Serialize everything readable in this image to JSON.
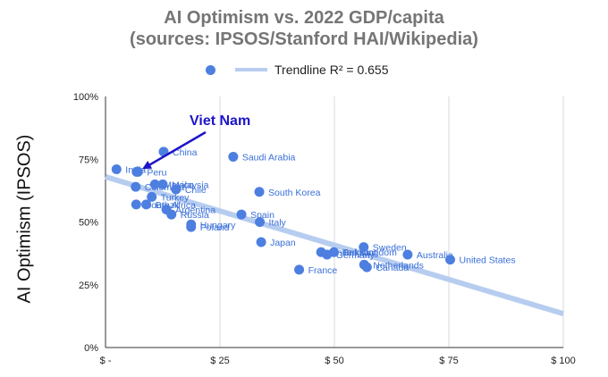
{
  "chart_data": {
    "type": "scatter",
    "title": "AI Optimism vs. 2022 GDP/capita",
    "subtitle": "(sources: IPSOS/Stanford HAI/Wikipedia)",
    "xlabel": "",
    "ylabel": "AI Optimism (IPSOS)",
    "xlim": [
      0,
      100
    ],
    "ylim": [
      0,
      100
    ],
    "x_ticks": [
      {
        "value": 0,
        "label": "$ -"
      },
      {
        "value": 25,
        "label": "$ 25"
      },
      {
        "value": 50,
        "label": "$ 50"
      },
      {
        "value": 75,
        "label": "$ 75"
      },
      {
        "value": 100,
        "label": "$ 100"
      }
    ],
    "y_ticks": [
      {
        "value": 0,
        "label": "0%"
      },
      {
        "value": 25,
        "label": "25%"
      },
      {
        "value": 50,
        "label": "50%"
      },
      {
        "value": 75,
        "label": "75%"
      },
      {
        "value": 100,
        "label": "100%"
      }
    ],
    "grid": "vertical",
    "legend_position": "top",
    "legend": {
      "trendline_label": "Trendline R² = 0.655"
    },
    "points_color": "#4d7fe0",
    "trendline_color": "#b7cdf0",
    "label_color": "#3a6fd8",
    "trendline": {
      "x0": 0,
      "y0": 68,
      "x1": 100,
      "y1": 13.5
    },
    "points": [
      {
        "label": "India",
        "x": 2.4,
        "y": 71
      },
      {
        "label": "Viet Nam",
        "x": 6.8,
        "y": 70
      },
      {
        "label": "Peru",
        "x": 7.1,
        "y": 70
      },
      {
        "label": "China",
        "x": 12.7,
        "y": 78
      },
      {
        "label": "Colombia",
        "x": 6.6,
        "y": 64
      },
      {
        "label": "Mexico",
        "x": 10.8,
        "y": 65
      },
      {
        "label": "Malaysia",
        "x": 12.5,
        "y": 65
      },
      {
        "label": "Chile",
        "x": 15.4,
        "y": 63
      },
      {
        "label": "Turkey",
        "x": 10.1,
        "y": 60
      },
      {
        "label": "South Africa",
        "x": 6.7,
        "y": 57
      },
      {
        "label": "Brazil",
        "x": 8.9,
        "y": 57
      },
      {
        "label": "Argentina",
        "x": 13.3,
        "y": 55
      },
      {
        "label": "Russia",
        "x": 14.4,
        "y": 53
      },
      {
        "label": "Poland",
        "x": 18.7,
        "y": 48
      },
      {
        "label": "Hungary",
        "x": 18.7,
        "y": 49
      },
      {
        "label": "Saudi Arabia",
        "x": 27.9,
        "y": 76
      },
      {
        "label": "South Korea",
        "x": 33.6,
        "y": 62
      },
      {
        "label": "Spain",
        "x": 29.7,
        "y": 53
      },
      {
        "label": "Italy",
        "x": 33.7,
        "y": 50
      },
      {
        "label": "Japan",
        "x": 34.0,
        "y": 42
      },
      {
        "label": "France",
        "x": 42.3,
        "y": 31
      },
      {
        "label": "United Kingdom",
        "x": 47.1,
        "y": 38
      },
      {
        "label": "Germany",
        "x": 48.4,
        "y": 37
      },
      {
        "label": "Belgium",
        "x": 49.9,
        "y": 38
      },
      {
        "label": "Sweden",
        "x": 56.4,
        "y": 40
      },
      {
        "label": "Netherlands",
        "x": 56.5,
        "y": 33
      },
      {
        "label": "Canada",
        "x": 57.1,
        "y": 32
      },
      {
        "label": "Australia",
        "x": 66.0,
        "y": 37
      },
      {
        "label": "United States",
        "x": 75.3,
        "y": 35
      }
    ],
    "annotation": {
      "text": "Viet Nam",
      "color": "#1c14c8",
      "target_point": "Viet Nam"
    }
  }
}
